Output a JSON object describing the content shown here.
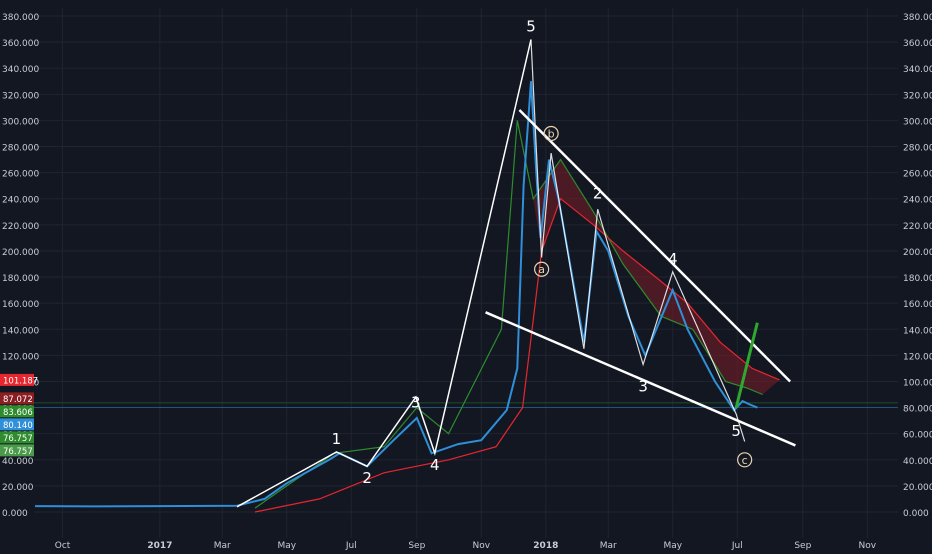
{
  "chart_data": {
    "type": "line",
    "title": "",
    "xlabel": "",
    "ylabel": "",
    "ylim": [
      -20,
      380
    ],
    "grid": true,
    "y_ticks": [
      0,
      20,
      40,
      60,
      80,
      100,
      120,
      140,
      160,
      180,
      200,
      220,
      240,
      260,
      280,
      300,
      320,
      340,
      360,
      380
    ],
    "y_tick_labels": [
      "0.000",
      "20.000",
      "40.000",
      "60.000",
      "80.000",
      "100.000",
      "120.000",
      "140.000",
      "160.000",
      "180.000",
      "200.000",
      "220.000",
      "240.000",
      "260.000",
      "280.000",
      "300.000",
      "320.000",
      "340.000",
      "360.000",
      "380.000"
    ],
    "x_ticks": [
      {
        "date": "2016-10-01",
        "label": "Oct"
      },
      {
        "date": "2017-01-01",
        "label": "2017"
      },
      {
        "date": "2017-03-01",
        "label": "Mar"
      },
      {
        "date": "2017-05-01",
        "label": "May"
      },
      {
        "date": "2017-07-01",
        "label": "Jul"
      },
      {
        "date": "2017-09-01",
        "label": "Sep"
      },
      {
        "date": "2017-11-01",
        "label": "Nov"
      },
      {
        "date": "2018-01-01",
        "label": "2018"
      },
      {
        "date": "2018-03-01",
        "label": "Mar"
      },
      {
        "date": "2018-05-01",
        "label": "May"
      },
      {
        "date": "2018-07-01",
        "label": "Jul"
      },
      {
        "date": "2018-09-01",
        "label": "Sep"
      },
      {
        "date": "2018-11-01",
        "label": "Nov"
      }
    ],
    "xlim": [
      "2016-09-04",
      "2018-11-30"
    ],
    "colors": {
      "background": "#131722",
      "grid": "#1f2430",
      "axis_text": "#c9ccd4",
      "price_main": "#2f8fd8",
      "price_secondary": "#e9d2b0",
      "sma_red": "#e8262f",
      "sma_darkred": "#8a1e22",
      "sma_green": "#2e8b2e",
      "ema_orange": "#d66a2c",
      "cloud_red": "#7a1e26",
      "cloud_green": "#1e4a24",
      "wave_line": "#ffffff",
      "projection": "#2fa82f"
    },
    "series": [
      {
        "key": "price",
        "values": [
          {
            "x": "2016-09-05",
            "y": 4.5
          },
          {
            "x": "2016-11-01",
            "y": 4.3
          },
          {
            "x": "2017-01-01",
            "y": 4.5
          },
          {
            "x": "2017-03-15",
            "y": 4.8
          },
          {
            "x": "2017-04-10",
            "y": 10
          },
          {
            "x": "2017-05-01",
            "y": 22
          },
          {
            "x": "2017-06-10",
            "y": 40
          },
          {
            "x": "2017-06-20",
            "y": 45
          },
          {
            "x": "2017-07-16",
            "y": 35
          },
          {
            "x": "2017-08-10",
            "y": 55
          },
          {
            "x": "2017-09-01",
            "y": 72
          },
          {
            "x": "2017-09-15",
            "y": 45
          },
          {
            "x": "2017-10-10",
            "y": 52
          },
          {
            "x": "2017-11-01",
            "y": 55
          },
          {
            "x": "2017-11-25",
            "y": 78
          },
          {
            "x": "2017-12-05",
            "y": 110
          },
          {
            "x": "2017-12-11",
            "y": 250
          },
          {
            "x": "2017-12-18",
            "y": 330
          },
          {
            "x": "2017-12-23",
            "y": 260
          },
          {
            "x": "2017-12-27",
            "y": 210
          },
          {
            "x": "2018-01-04",
            "y": 270
          },
          {
            "x": "2018-01-13",
            "y": 240
          },
          {
            "x": "2018-02-06",
            "y": 130
          },
          {
            "x": "2018-02-18",
            "y": 215
          },
          {
            "x": "2018-03-01",
            "y": 200
          },
          {
            "x": "2018-03-20",
            "y": 150
          },
          {
            "x": "2018-04-05",
            "y": 120
          },
          {
            "x": "2018-05-01",
            "y": 170
          },
          {
            "x": "2018-05-15",
            "y": 140
          },
          {
            "x": "2018-06-10",
            "y": 100
          },
          {
            "x": "2018-06-28",
            "y": 78
          },
          {
            "x": "2018-07-06",
            "y": 85
          },
          {
            "x": "2018-07-14",
            "y": 82
          },
          {
            "x": "2018-07-20",
            "y": 80
          }
        ]
      },
      {
        "key": "green_sma",
        "values": [
          {
            "x": "2017-04-01",
            "y": 3
          },
          {
            "x": "2017-05-01",
            "y": 20
          },
          {
            "x": "2017-06-15",
            "y": 45
          },
          {
            "x": "2017-08-01",
            "y": 50
          },
          {
            "x": "2017-09-01",
            "y": 80
          },
          {
            "x": "2017-10-01",
            "y": 60
          },
          {
            "x": "2017-11-20",
            "y": 140
          },
          {
            "x": "2017-12-05",
            "y": 300
          },
          {
            "x": "2017-12-20",
            "y": 240
          },
          {
            "x": "2018-01-15",
            "y": 270
          },
          {
            "x": "2018-02-15",
            "y": 230
          },
          {
            "x": "2018-03-15",
            "y": 190
          },
          {
            "x": "2018-04-20",
            "y": 150
          },
          {
            "x": "2018-05-20",
            "y": 140
          },
          {
            "x": "2018-06-20",
            "y": 100
          },
          {
            "x": "2018-07-10",
            "y": 95
          },
          {
            "x": "2018-07-25",
            "y": 90
          }
        ]
      },
      {
        "key": "red_sma",
        "values": [
          {
            "x": "2017-04-01",
            "y": 0
          },
          {
            "x": "2017-06-01",
            "y": 10
          },
          {
            "x": "2017-08-01",
            "y": 30
          },
          {
            "x": "2017-10-01",
            "y": 40
          },
          {
            "x": "2017-11-15",
            "y": 50
          },
          {
            "x": "2017-12-10",
            "y": 80
          },
          {
            "x": "2017-12-28",
            "y": 200
          },
          {
            "x": "2018-01-15",
            "y": 240
          },
          {
            "x": "2018-02-15",
            "y": 220
          },
          {
            "x": "2018-03-15",
            "y": 200
          },
          {
            "x": "2018-04-15",
            "y": 180
          },
          {
            "x": "2018-05-15",
            "y": 160
          },
          {
            "x": "2018-06-15",
            "y": 130
          },
          {
            "x": "2018-07-15",
            "y": 110
          },
          {
            "x": "2018-08-10",
            "y": 101.187
          }
        ]
      }
    ],
    "annotations": [
      {
        "label": "1",
        "x": "2017-06-17",
        "y": 56
      },
      {
        "label": "2",
        "x": "2017-07-16",
        "y": 26
      },
      {
        "label": "3",
        "x": "2017-08-31",
        "y": 84
      },
      {
        "label": "4",
        "x": "2017-09-18",
        "y": 36
      },
      {
        "label": "5",
        "x": "2017-12-18",
        "y": 372
      },
      {
        "label": "b",
        "x": "2018-01-06",
        "y": 290,
        "circled": true
      },
      {
        "label": "a",
        "x": "2017-12-28",
        "y": 186,
        "circled": true
      },
      {
        "label": "2",
        "x": "2018-02-19",
        "y": 244
      },
      {
        "label": "3",
        "x": "2018-04-03",
        "y": 96
      },
      {
        "label": "4",
        "x": "2018-05-01",
        "y": 194
      },
      {
        "label": "5",
        "x": "2018-06-30",
        "y": 62
      },
      {
        "label": "c",
        "x": "2018-07-08",
        "y": 40,
        "circled": true
      }
    ],
    "wave_path": [
      {
        "x": "2017-03-15",
        "y": 4
      },
      {
        "x": "2017-06-17",
        "y": 46
      },
      {
        "x": "2017-07-16",
        "y": 35
      },
      {
        "x": "2017-08-31",
        "y": 88
      },
      {
        "x": "2017-09-18",
        "y": 45
      },
      {
        "x": "2017-12-18",
        "y": 362
      }
    ],
    "corrective_path": [
      {
        "x": "2017-12-18",
        "y": 362
      },
      {
        "x": "2017-12-28",
        "y": 195
      },
      {
        "x": "2018-01-06",
        "y": 275
      },
      {
        "x": "2018-02-06",
        "y": 125
      },
      {
        "x": "2018-02-19",
        "y": 232
      },
      {
        "x": "2018-04-03",
        "y": 113
      },
      {
        "x": "2018-05-01",
        "y": 184
      },
      {
        "x": "2018-06-30",
        "y": 75
      },
      {
        "x": "2018-07-08",
        "y": 54
      }
    ],
    "trend_lines": [
      {
        "from": {
          "x": "2017-12-07",
          "y": 308
        },
        "to": {
          "x": "2018-08-20",
          "y": 100
        }
      },
      {
        "from": {
          "x": "2017-11-05",
          "y": 153
        },
        "to": {
          "x": "2018-08-25",
          "y": 51
        }
      }
    ],
    "projection": {
      "from": {
        "x": "2018-06-30",
        "y": 80
      },
      "to": {
        "x": "2018-07-20",
        "y": 145
      }
    },
    "price_tags": [
      {
        "value": 101.187,
        "label": "101.187",
        "color": "#e8262f"
      },
      {
        "value": 87.072,
        "label": "87.072",
        "color": "#8a1e22"
      },
      {
        "value": 83.606,
        "label": "83.606",
        "color": "#2e8b2e"
      },
      {
        "value": 80.14,
        "label": "80.140",
        "color": "#2f8fd8"
      },
      {
        "value": 76.757,
        "label": "76.757",
        "color": "#2e8b2e"
      },
      {
        "value": 76.757,
        "label": "76.757",
        "color": "#4a9a4a"
      }
    ]
  }
}
